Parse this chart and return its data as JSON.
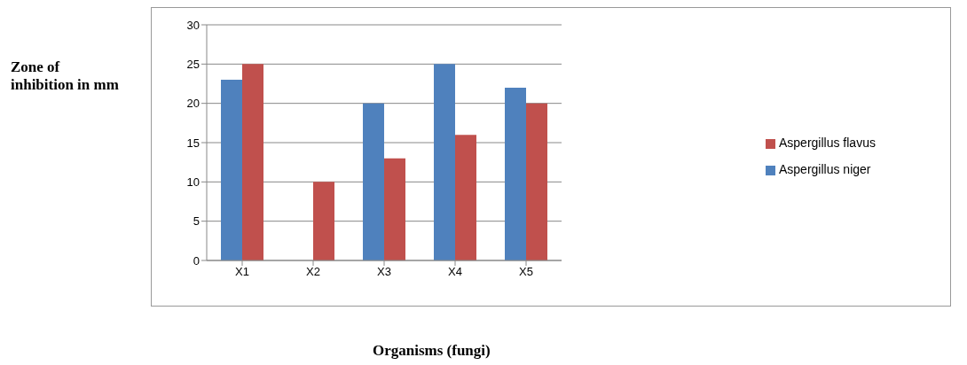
{
  "chart_data": {
    "type": "bar",
    "xlabel": "Organisms  (fungi)",
    "ylabel": "Zone  of inhibition in mm",
    "categories": [
      "X1",
      "X2",
      "X3",
      "X4",
      "X5"
    ],
    "series": [
      {
        "name": "Aspergillus niger",
        "color": "#4f81bd",
        "values": [
          23,
          0,
          20,
          25,
          22
        ]
      },
      {
        "name": "Aspergillus flavus",
        "color": "#c0504d",
        "values": [
          25,
          10,
          13,
          16,
          20
        ]
      }
    ],
    "ylim": [
      0,
      30
    ],
    "yticks": [
      0,
      5,
      10,
      15,
      20,
      25,
      30
    ],
    "grid": "y",
    "legend": "right"
  }
}
